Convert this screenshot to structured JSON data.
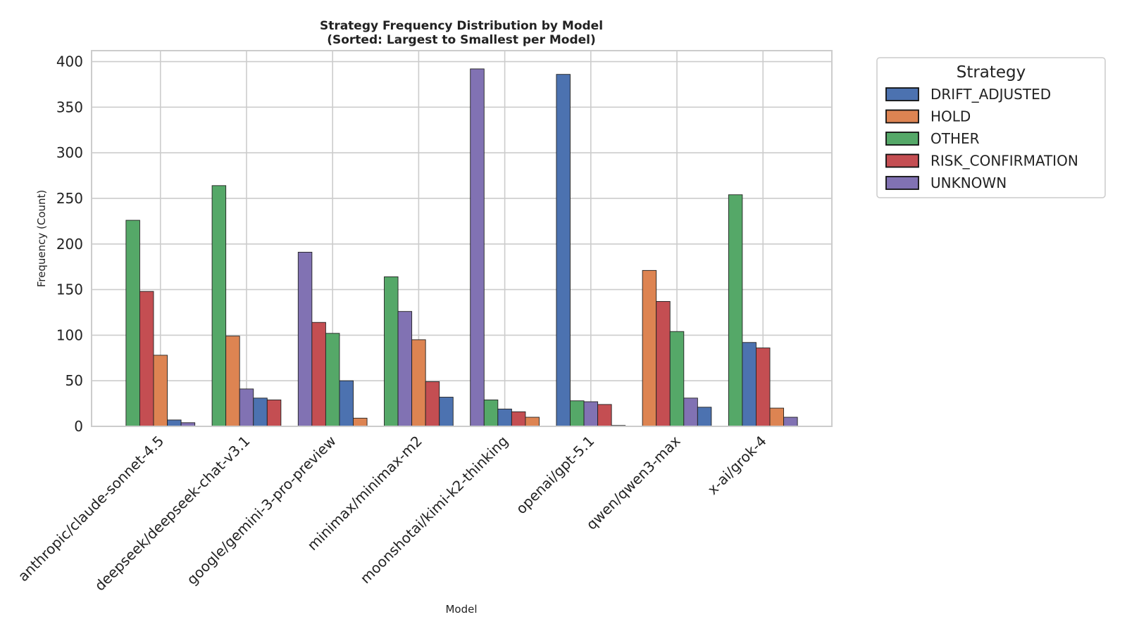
{
  "chart_data": {
    "type": "bar",
    "title": "Strategy Frequency Distribution by Model",
    "subtitle": "(Sorted: Largest to Smallest per Model)",
    "xlabel": "Model",
    "ylabel": "Frequency (Count)",
    "ylim": [
      0,
      412
    ],
    "yticks": [
      0,
      50,
      100,
      150,
      200,
      250,
      300,
      350,
      400
    ],
    "grid": true,
    "legend": {
      "title": "Strategy",
      "placement": "outside-top-right",
      "entries": [
        "DRIFT_ADJUSTED",
        "HOLD",
        "OTHER",
        "RISK_CONFIRMATION",
        "UNKNOWN"
      ]
    },
    "colors": {
      "DRIFT_ADJUSTED": "#4c72b0",
      "HOLD": "#dd8452",
      "OTHER": "#55a868",
      "RISK_CONFIRMATION": "#c44e52",
      "UNKNOWN": "#8172b3"
    },
    "models": [
      {
        "name": "anthropic/claude-sonnet-4.5",
        "bars": [
          {
            "strategy": "OTHER",
            "value": 226
          },
          {
            "strategy": "RISK_CONFIRMATION",
            "value": 148
          },
          {
            "strategy": "HOLD",
            "value": 78
          },
          {
            "strategy": "DRIFT_ADJUSTED",
            "value": 7
          },
          {
            "strategy": "UNKNOWN",
            "value": 4
          }
        ]
      },
      {
        "name": "deepseek/deepseek-chat-v3.1",
        "bars": [
          {
            "strategy": "OTHER",
            "value": 264
          },
          {
            "strategy": "HOLD",
            "value": 99
          },
          {
            "strategy": "UNKNOWN",
            "value": 41
          },
          {
            "strategy": "DRIFT_ADJUSTED",
            "value": 31
          },
          {
            "strategy": "RISK_CONFIRMATION",
            "value": 29
          }
        ]
      },
      {
        "name": "google/gemini-3-pro-preview",
        "bars": [
          {
            "strategy": "UNKNOWN",
            "value": 191
          },
          {
            "strategy": "RISK_CONFIRMATION",
            "value": 114
          },
          {
            "strategy": "OTHER",
            "value": 102
          },
          {
            "strategy": "DRIFT_ADJUSTED",
            "value": 50
          },
          {
            "strategy": "HOLD",
            "value": 9
          }
        ]
      },
      {
        "name": "minimax/minimax-m2",
        "bars": [
          {
            "strategy": "OTHER",
            "value": 164
          },
          {
            "strategy": "UNKNOWN",
            "value": 126
          },
          {
            "strategy": "HOLD",
            "value": 95
          },
          {
            "strategy": "RISK_CONFIRMATION",
            "value": 49
          },
          {
            "strategy": "DRIFT_ADJUSTED",
            "value": 32
          }
        ]
      },
      {
        "name": "moonshotai/kimi-k2-thinking",
        "bars": [
          {
            "strategy": "UNKNOWN",
            "value": 392
          },
          {
            "strategy": "OTHER",
            "value": 29
          },
          {
            "strategy": "DRIFT_ADJUSTED",
            "value": 19
          },
          {
            "strategy": "RISK_CONFIRMATION",
            "value": 16
          },
          {
            "strategy": "HOLD",
            "value": 10
          }
        ]
      },
      {
        "name": "openai/gpt-5.1",
        "bars": [
          {
            "strategy": "DRIFT_ADJUSTED",
            "value": 386
          },
          {
            "strategy": "OTHER",
            "value": 28
          },
          {
            "strategy": "UNKNOWN",
            "value": 27
          },
          {
            "strategy": "RISK_CONFIRMATION",
            "value": 24
          },
          {
            "strategy": "HOLD",
            "value": 1
          }
        ]
      },
      {
        "name": "qwen/qwen3-max",
        "bars": [
          {
            "strategy": "HOLD",
            "value": 171
          },
          {
            "strategy": "RISK_CONFIRMATION",
            "value": 137
          },
          {
            "strategy": "OTHER",
            "value": 104
          },
          {
            "strategy": "UNKNOWN",
            "value": 31
          },
          {
            "strategy": "DRIFT_ADJUSTED",
            "value": 21
          }
        ]
      },
      {
        "name": "x-ai/grok-4",
        "bars": [
          {
            "strategy": "OTHER",
            "value": 254
          },
          {
            "strategy": "DRIFT_ADJUSTED",
            "value": 92
          },
          {
            "strategy": "RISK_CONFIRMATION",
            "value": 86
          },
          {
            "strategy": "HOLD",
            "value": 20
          },
          {
            "strategy": "UNKNOWN",
            "value": 10
          }
        ]
      }
    ]
  }
}
